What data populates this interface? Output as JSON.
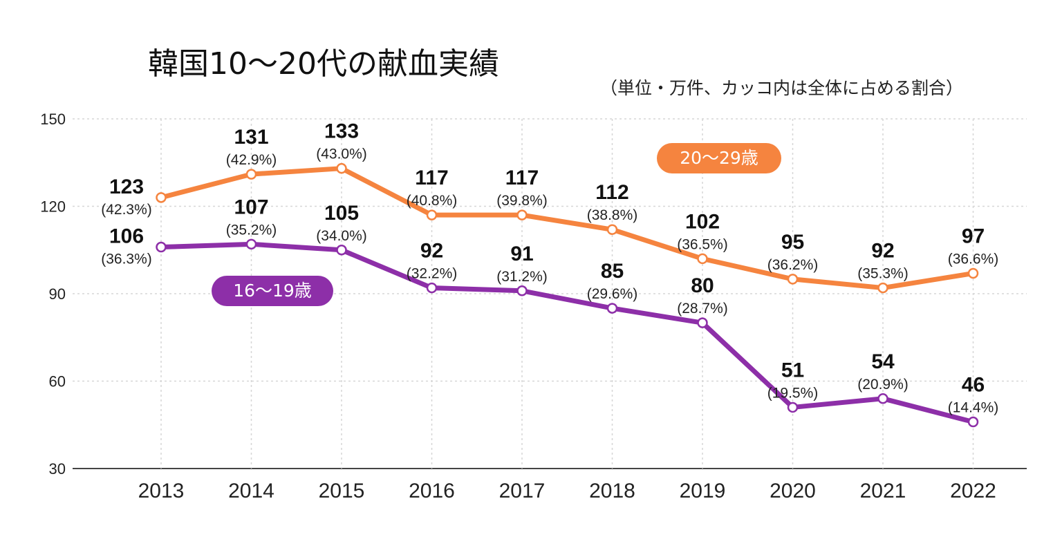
{
  "header": {
    "title": "韓国10～20代の献血実績",
    "unit_note": "（単位・万件、カッコ内は全体に占める割合）"
  },
  "legend": {
    "series_20s": "20～29歳",
    "series_teens": "16～19歳"
  },
  "colors": {
    "series_20s": "#f5843f",
    "series_teens": "#8d2fa8",
    "grid": "#d6d6d6",
    "axis": "#444444"
  },
  "chart_data": {
    "type": "line",
    "title": "韓国10～20代の献血実績",
    "subtitle": "（単位・万件、カッコ内は全体に占める割合）",
    "xlabel": "",
    "ylabel": "",
    "categories": [
      "2013",
      "2014",
      "2015",
      "2016",
      "2017",
      "2018",
      "2019",
      "2020",
      "2021",
      "2022"
    ],
    "ylim": [
      30,
      150
    ],
    "yticks": [
      30,
      60,
      90,
      120,
      150
    ],
    "grid": true,
    "series": [
      {
        "name": "20～29歳",
        "values": [
          123,
          131,
          133,
          117,
          117,
          112,
          102,
          95,
          92,
          97
        ],
        "share_labels": [
          "(42.3%)",
          "(42.9%)",
          "(43.0%)",
          "(40.8%)",
          "(39.8%)",
          "(38.8%)",
          "(36.5%)",
          "(36.2%)",
          "(35.3%)",
          "(36.6%)"
        ]
      },
      {
        "name": "16～19歳",
        "values": [
          106,
          107,
          105,
          92,
          91,
          85,
          80,
          51,
          54,
          46
        ],
        "share_labels": [
          "(36.3%)",
          "(35.2%)",
          "(34.0%)",
          "(32.2%)",
          "(31.2%)",
          "(29.6%)",
          "(28.7%)",
          "(19.5%)",
          "(20.9%)",
          "(14.4%)"
        ]
      }
    ]
  }
}
